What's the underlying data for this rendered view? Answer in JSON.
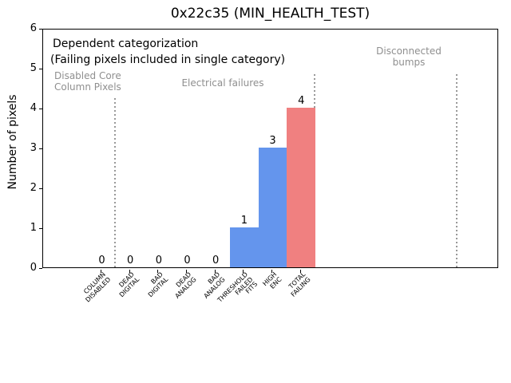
{
  "chart_data": {
    "type": "bar",
    "title": "0x22c35 (MIN_HEALTH_TEST)",
    "ylabel": "Number of pixels",
    "ylim": [
      0,
      6
    ],
    "yticks": [
      "0",
      "1",
      "2",
      "3",
      "4",
      "5",
      "6"
    ],
    "categories": [
      "COLUMN\nDISABLED",
      "DEAD\nDIGITAL",
      "BAD\nDIGITAL",
      "DEAD\nANALOG",
      "BAD\nANALOG",
      "THRESHOLD\nFAILED\nFITS",
      "HIGH\nENC",
      "TOTAL\nFAILING"
    ],
    "values": [
      0,
      0,
      0,
      0,
      0,
      1,
      3,
      4
    ],
    "bar_colors": [
      "#6495ed",
      "#6495ed",
      "#6495ed",
      "#6495ed",
      "#6495ed",
      "#6495ed",
      "#6495ed",
      "#f08080"
    ],
    "legend_position": "none",
    "grid": "off",
    "annotations": {
      "note_line1": "Dependent categorization",
      "note_line2": "(Failing pixels included in single category)",
      "region_labels": [
        {
          "text": "Disabled Core\nColumn Pixels",
          "color": "#8f8f8f"
        },
        {
          "text": "Electrical failures",
          "color": "#8f8f8f"
        },
        {
          "text": "Disconnected\nbumps",
          "color": "#8f8f8f"
        }
      ],
      "separator_color": "#999999",
      "separators_x_data": [
        0.5,
        7.5,
        12.5
      ]
    }
  }
}
